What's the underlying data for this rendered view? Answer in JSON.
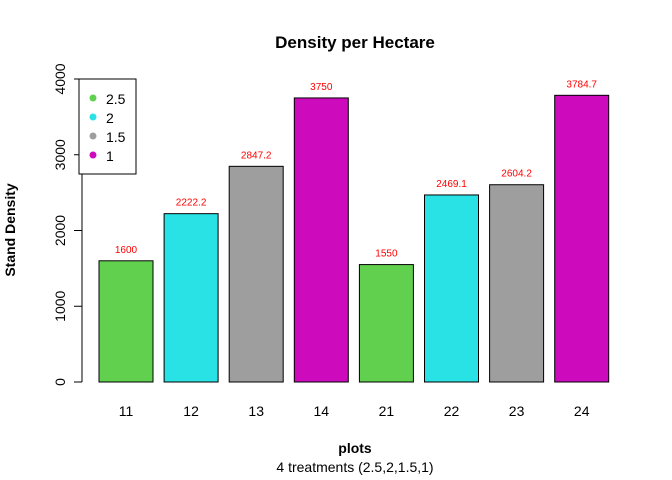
{
  "chart_data": {
    "type": "bar",
    "title": "Density per Hectare",
    "xlabel": "plots",
    "ylabel": "Stand Density",
    "subtitle": "4 treatments (2.5,2,1.5,1)",
    "categories": [
      "11",
      "12",
      "13",
      "14",
      "21",
      "22",
      "23",
      "24"
    ],
    "values": [
      1600,
      2222.2,
      2847.2,
      3750,
      1550,
      2469.1,
      2604.2,
      3784.7
    ],
    "data_labels": [
      "1600",
      "2222.2",
      "2847.2",
      "3750",
      "1550",
      "2469.1",
      "2604.2",
      "3784.7"
    ],
    "bar_treatments": [
      "2.5",
      "2",
      "1.5",
      "1",
      "2.5",
      "2",
      "1.5",
      "1"
    ],
    "ylim": [
      0,
      4000
    ],
    "yticks": [
      0,
      1000,
      2000,
      3000,
      4000
    ],
    "grid": false,
    "legend": {
      "placement": "top-left",
      "entries": [
        {
          "label": "2.5",
          "color": "#61d04f"
        },
        {
          "label": "2",
          "color": "#28e2e5"
        },
        {
          "label": "1.5",
          "color": "#9e9e9e"
        },
        {
          "label": "1",
          "color": "#cd0bbc"
        }
      ]
    },
    "data_label_color": "#ff0000"
  }
}
